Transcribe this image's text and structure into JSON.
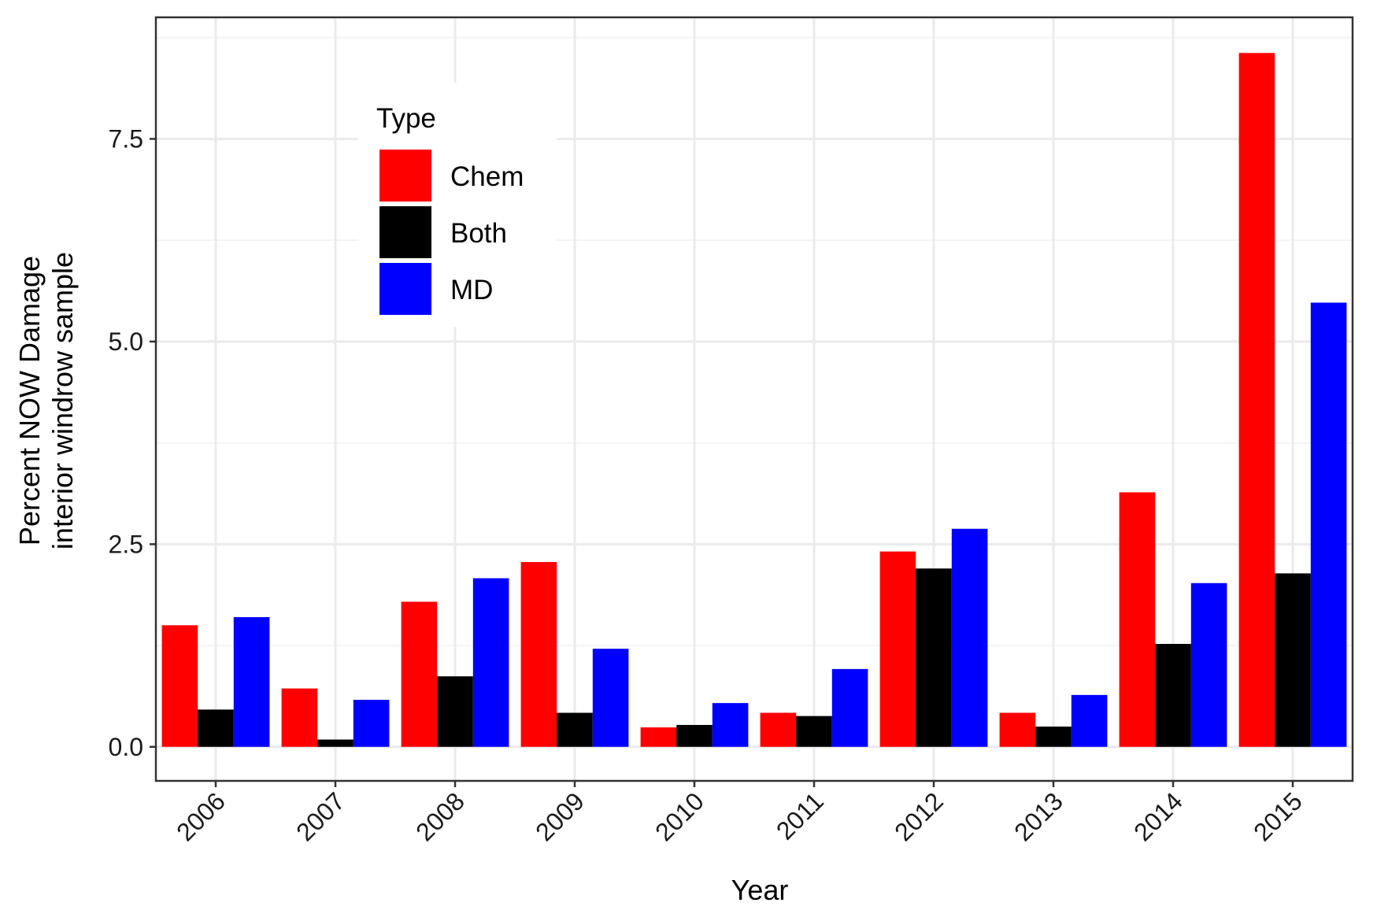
{
  "chart_data": {
    "type": "bar",
    "categories": [
      "2006",
      "2007",
      "2008",
      "2009",
      "2010",
      "2011",
      "2012",
      "2013",
      "2014",
      "2015"
    ],
    "series": [
      {
        "name": "Chem",
        "color": "#ff0000",
        "values": [
          1.5,
          0.72,
          1.79,
          2.28,
          0.24,
          0.42,
          2.41,
          0.42,
          3.14,
          8.56
        ]
      },
      {
        "name": "Both",
        "color": "#000000",
        "values": [
          0.46,
          0.09,
          0.87,
          0.42,
          0.27,
          0.38,
          2.2,
          0.25,
          1.27,
          2.14
        ]
      },
      {
        "name": "MD",
        "color": "#0000ff",
        "values": [
          1.6,
          0.58,
          2.08,
          1.21,
          0.54,
          0.96,
          2.69,
          0.64,
          2.02,
          5.48
        ]
      }
    ],
    "title": "",
    "xlabel": "Year",
    "ylabel": [
      "Percent NOW Damage",
      "interior windrow sample"
    ],
    "ylim": [
      -0.42,
      9.0
    ],
    "yticks": [
      0.0,
      2.5,
      5.0,
      7.5
    ],
    "ytick_labels": [
      "0.0",
      "2.5",
      "5.0",
      "7.5"
    ],
    "legend": {
      "title": "Type",
      "position": "inside-top-left"
    },
    "grid": true
  }
}
